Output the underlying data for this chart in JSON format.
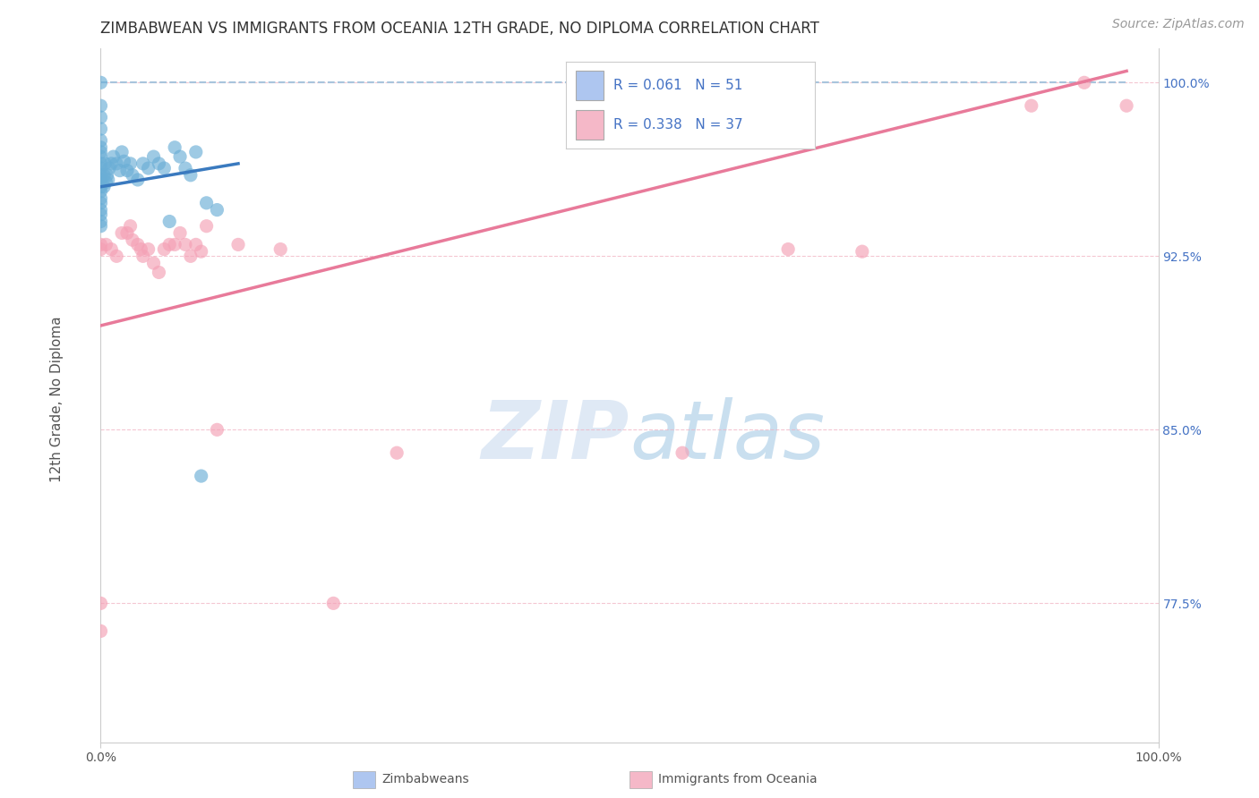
{
  "title": "ZIMBABWEAN VS IMMIGRANTS FROM OCEANIA 12TH GRADE, NO DIPLOMA CORRELATION CHART",
  "source_text": "Source: ZipAtlas.com",
  "ylabel": "12th Grade, No Diploma",
  "x_min": 0.0,
  "x_max": 1.0,
  "y_min": 0.715,
  "y_max": 1.015,
  "y_tick_labels": [
    "77.5%",
    "85.0%",
    "92.5%",
    "100.0%"
  ],
  "y_tick_vals": [
    0.775,
    0.85,
    0.925,
    1.0
  ],
  "legend_color1": "#aec6f0",
  "legend_color2": "#f5b8c8",
  "watermark_zip": "ZIP",
  "watermark_atlas": "atlas",
  "scatter_blue_x": [
    0.0,
    0.0,
    0.0,
    0.0,
    0.0,
    0.0,
    0.0,
    0.0,
    0.0,
    0.0,
    0.0,
    0.0,
    0.0,
    0.0,
    0.0,
    0.0,
    0.0,
    0.0,
    0.0,
    0.0,
    0.003,
    0.003,
    0.004,
    0.005,
    0.006,
    0.007,
    0.008,
    0.01,
    0.012,
    0.015,
    0.018,
    0.02,
    0.022,
    0.025,
    0.028,
    0.03,
    0.035,
    0.04,
    0.045,
    0.05,
    0.055,
    0.06,
    0.065,
    0.07,
    0.075,
    0.08,
    0.085,
    0.09,
    0.095,
    0.1,
    0.11
  ],
  "scatter_blue_y": [
    1.0,
    0.99,
    0.985,
    0.98,
    0.975,
    0.972,
    0.97,
    0.968,
    0.965,
    0.963,
    0.96,
    0.958,
    0.955,
    0.953,
    0.95,
    0.948,
    0.945,
    0.943,
    0.94,
    0.938,
    0.96,
    0.955,
    0.965,
    0.957,
    0.96,
    0.958,
    0.963,
    0.965,
    0.968,
    0.965,
    0.962,
    0.97,
    0.966,
    0.962,
    0.965,
    0.96,
    0.958,
    0.965,
    0.963,
    0.968,
    0.965,
    0.963,
    0.94,
    0.972,
    0.968,
    0.963,
    0.96,
    0.97,
    0.83,
    0.948,
    0.945
  ],
  "scatter_pink_x": [
    0.0,
    0.0,
    0.0,
    0.0,
    0.005,
    0.01,
    0.015,
    0.02,
    0.025,
    0.028,
    0.03,
    0.035,
    0.038,
    0.04,
    0.045,
    0.05,
    0.055,
    0.06,
    0.065,
    0.07,
    0.075,
    0.08,
    0.085,
    0.09,
    0.095,
    0.1,
    0.11,
    0.13,
    0.17,
    0.22,
    0.28,
    0.55,
    0.65,
    0.72,
    0.88,
    0.93,
    0.97
  ],
  "scatter_pink_y": [
    0.93,
    0.928,
    0.775,
    0.763,
    0.93,
    0.928,
    0.925,
    0.935,
    0.935,
    0.938,
    0.932,
    0.93,
    0.928,
    0.925,
    0.928,
    0.922,
    0.918,
    0.928,
    0.93,
    0.93,
    0.935,
    0.93,
    0.925,
    0.93,
    0.927,
    0.938,
    0.85,
    0.93,
    0.928,
    0.775,
    0.84,
    0.84,
    0.928,
    0.927,
    0.99,
    1.0,
    0.99
  ],
  "blue_line_x": [
    0.0,
    0.13
  ],
  "blue_line_y": [
    0.955,
    0.965
  ],
  "pink_line_x": [
    0.0,
    0.97
  ],
  "pink_line_y": [
    0.895,
    1.005
  ],
  "dash_line_x": [
    0.0,
    0.97
  ],
  "dash_line_y": [
    1.0,
    1.0
  ],
  "dot_color_blue": "#6aaed6",
  "dot_color_pink": "#f4a0b5",
  "line_color_blue": "#3a7abf",
  "line_color_pink": "#e87a9a",
  "line_color_dash": "#a8c4dc",
  "grid_color": "#f0b0c0",
  "title_fontsize": 12,
  "axis_label_fontsize": 11,
  "tick_fontsize": 10,
  "source_fontsize": 10
}
